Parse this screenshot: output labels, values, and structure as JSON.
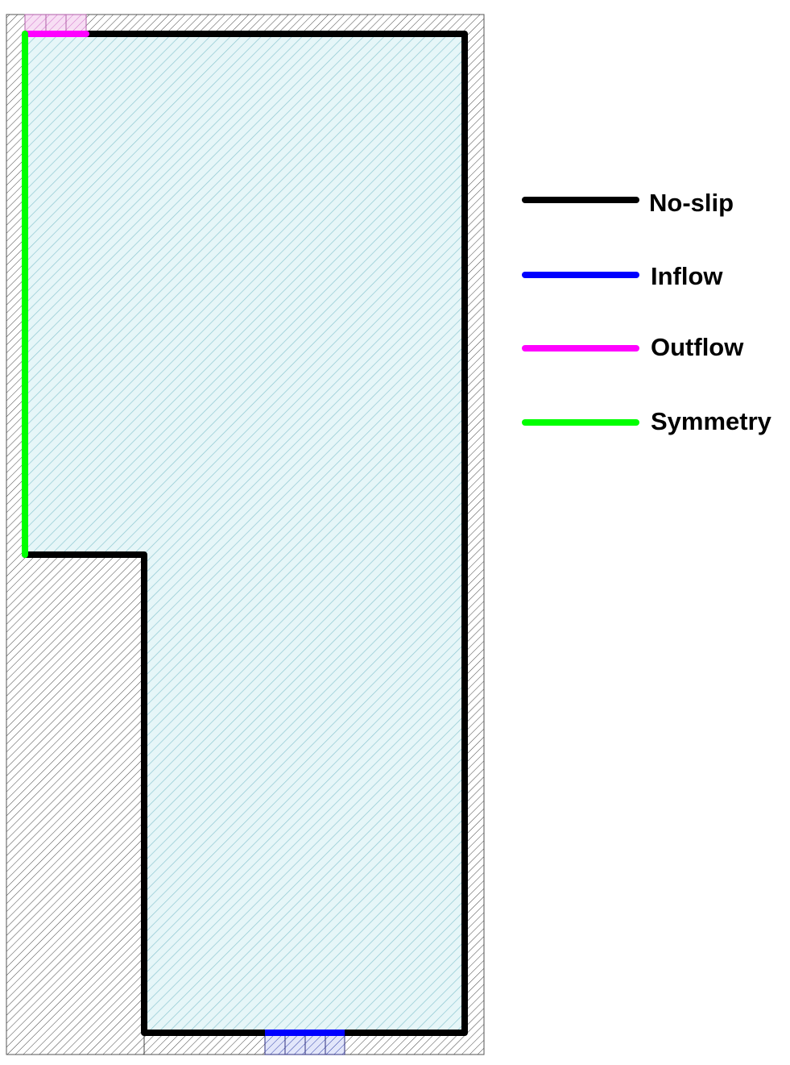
{
  "legend": {
    "items": [
      {
        "label": "No-slip",
        "color": "#000000"
      },
      {
        "label": "Inflow",
        "color": "#0000ff"
      },
      {
        "label": "Outflow",
        "color": "#ff00ff"
      },
      {
        "label": "Symmetry",
        "color": "#00ff00"
      }
    ]
  },
  "colors": {
    "fluid_fill": "#e6f6f8",
    "fluid_hatch": "#8fc8d2",
    "solid_hatch": "#444444",
    "outflow_hatch_fill": "#f7def4",
    "inflow_hatch_fill": "#e2e6fa",
    "frame": "#555555"
  }
}
